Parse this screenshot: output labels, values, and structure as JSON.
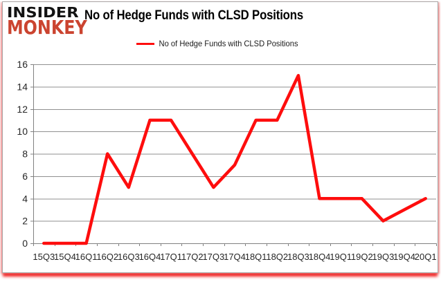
{
  "logo": {
    "line1": "INSIDER",
    "line2": "MONKEY"
  },
  "logo_colors": {
    "insider": "#121212",
    "monkey": "#CB4430"
  },
  "title": "No of Hedge Funds with CLSD Positions",
  "legend": {
    "label": "No of Hedge Funds with CLSD Positions",
    "line_color": "#FE0D0D"
  },
  "chart_data": {
    "type": "line",
    "title": "No of Hedge Funds with CLSD Positions",
    "categories": [
      "15Q3",
      "15Q4",
      "16Q1",
      "16Q2",
      "16Q3",
      "16Q4",
      "17Q1",
      "17Q2",
      "17Q3",
      "17Q4",
      "18Q1",
      "18Q2",
      "18Q3",
      "18Q4",
      "19Q1",
      "19Q2",
      "19Q3",
      "19Q4",
      "20Q1"
    ],
    "series": [
      {
        "name": "No of Hedge Funds with CLSD Positions",
        "color": "#FE0D0D",
        "values": [
          0,
          0,
          0,
          8,
          5,
          11,
          11,
          8,
          5,
          7,
          11,
          11,
          15,
          4,
          4,
          4,
          2,
          3,
          4
        ]
      }
    ],
    "xlabel": "",
    "ylabel": "",
    "ylim": [
      0,
      16
    ],
    "yticks": [
      0,
      2,
      4,
      6,
      8,
      10,
      12,
      14,
      16
    ],
    "grid": true,
    "legend_position": "top-center",
    "gridline_color": "#8F8F8F",
    "axis_color": "#808080",
    "tick_label_color": "#262626"
  }
}
